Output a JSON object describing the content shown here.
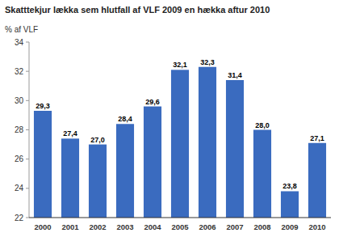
{
  "chart_data": {
    "type": "bar",
    "title": "Skatttekjur lækka sem hlutfall af VLF 2009 en hækka aftur 2010",
    "ylabel": "% af VLF",
    "categories": [
      "2000",
      "2001",
      "2002",
      "2003",
      "2004",
      "2005",
      "2006",
      "2007",
      "2008",
      "2009",
      "2010"
    ],
    "values": [
      29.3,
      27.4,
      27.0,
      28.4,
      29.6,
      32.1,
      32.3,
      31.4,
      28.0,
      23.8,
      27.1
    ],
    "value_labels": [
      "29,3",
      "27,4",
      "27,0",
      "28,4",
      "29,6",
      "32,1",
      "32,3",
      "31,4",
      "28,0",
      "23,8",
      "27,1"
    ],
    "color": "#3a6bbf",
    "ylim": [
      22,
      34
    ],
    "yticks": [
      22,
      24,
      26,
      28,
      30,
      32,
      34
    ],
    "data_labels": true,
    "grid": false
  }
}
